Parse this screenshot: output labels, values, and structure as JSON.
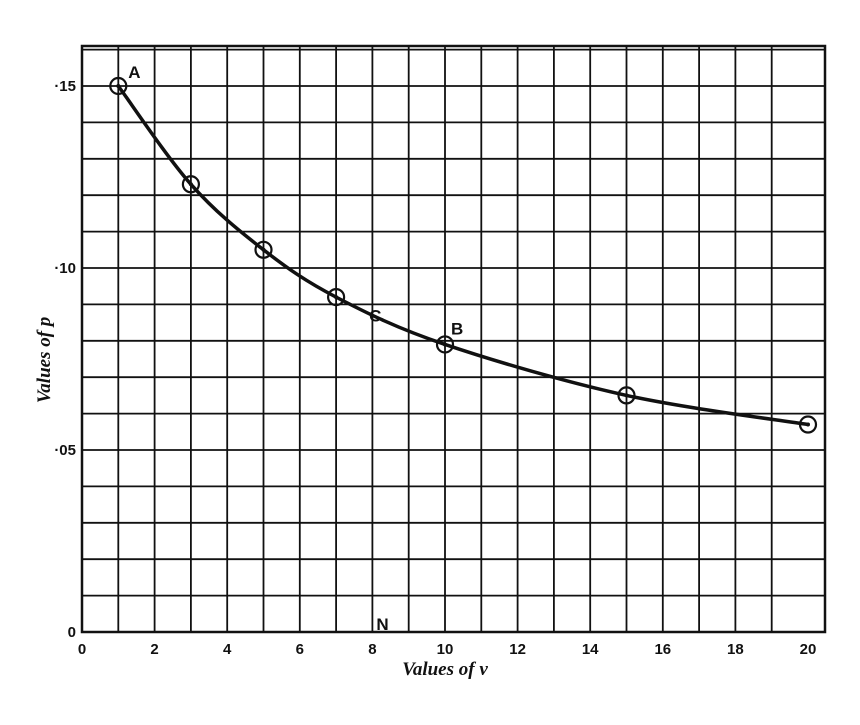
{
  "chart_data": {
    "type": "line",
    "title": "",
    "xlabel": "Values of v",
    "ylabel": "Values of p",
    "xlim": [
      0,
      20
    ],
    "ylim": [
      0,
      0.16
    ],
    "grid": true,
    "colors": {
      "background": "#ffffff",
      "ink": "#111111"
    },
    "x_ticks": [
      {
        "value": 0,
        "label": "0"
      },
      {
        "value": 2,
        "label": "2"
      },
      {
        "value": 4,
        "label": "4"
      },
      {
        "value": 6,
        "label": "6"
      },
      {
        "value": 8,
        "label": "8"
      },
      {
        "value": 10,
        "label": "10"
      },
      {
        "value": 12,
        "label": "12"
      },
      {
        "value": 14,
        "label": "14"
      },
      {
        "value": 16,
        "label": "16"
      },
      {
        "value": 18,
        "label": "18"
      },
      {
        "value": 20,
        "label": "20"
      }
    ],
    "y_ticks": [
      {
        "value": 0,
        "label": "0"
      },
      {
        "value": 0.05,
        "label": "·05"
      },
      {
        "value": 0.1,
        "label": "·10"
      },
      {
        "value": 0.15,
        "label": "·15"
      }
    ],
    "series": [
      {
        "x": [
          1,
          3,
          5,
          7,
          10,
          15,
          20
        ],
        "y": [
          0.15,
          0.123,
          0.105,
          0.092,
          0.079,
          0.065,
          0.057
        ]
      }
    ],
    "annotations": [
      {
        "label": "A",
        "x": 1,
        "y": 0.15
      },
      {
        "label": "C",
        "x": 7.8,
        "y": 0.088
      },
      {
        "label": "B",
        "x": 10,
        "y": 0.079
      },
      {
        "label": "N",
        "x": 8,
        "y": 0
      }
    ]
  }
}
